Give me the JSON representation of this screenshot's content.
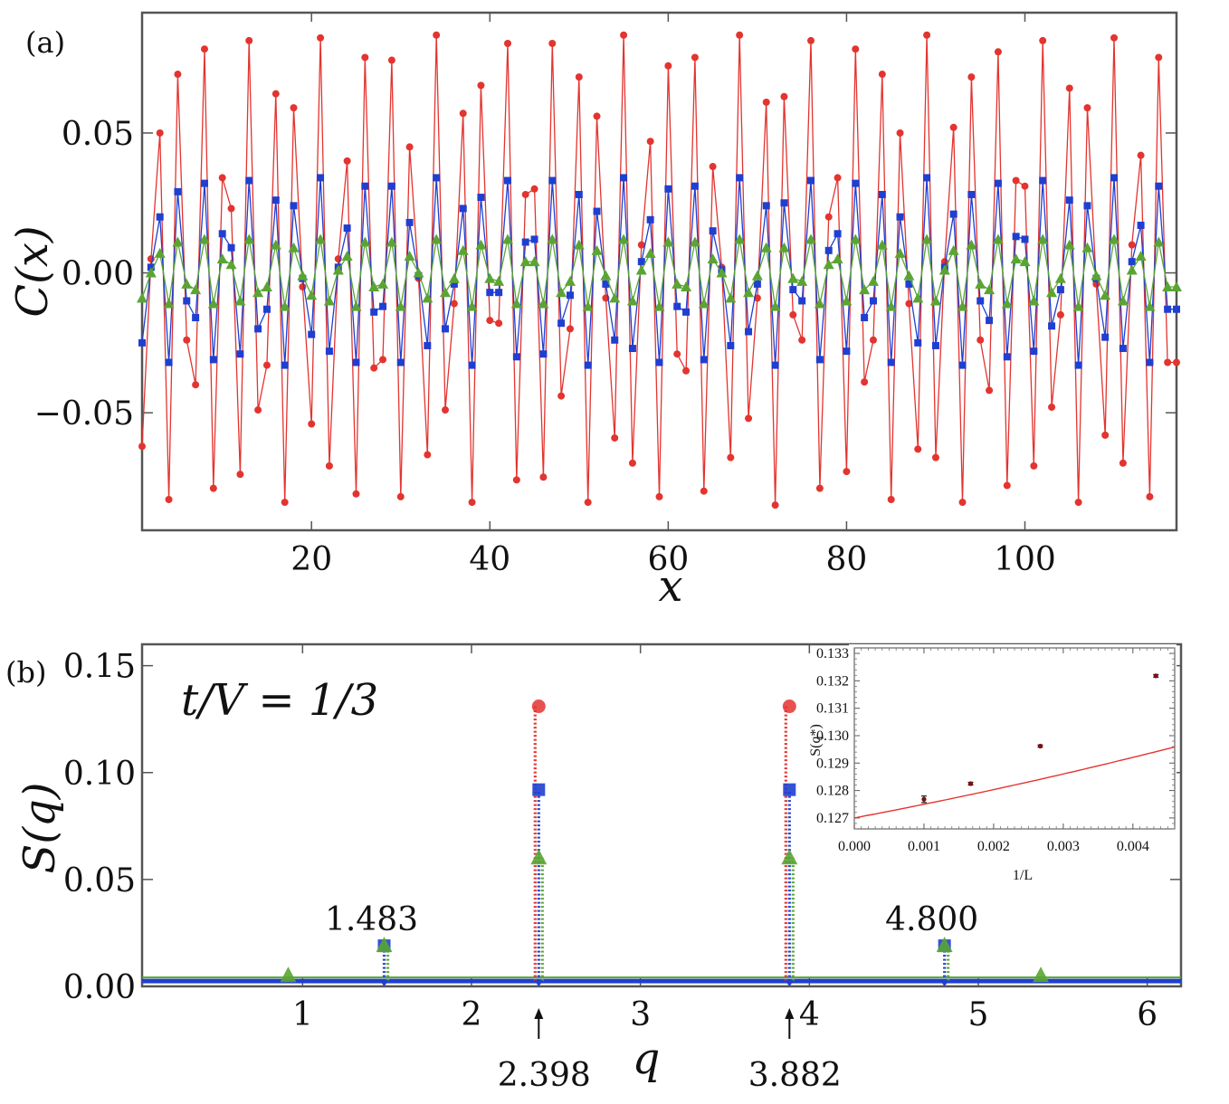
{
  "chart_data": [
    {
      "panel": "(a)",
      "type": "line",
      "xlabel": "x",
      "ylabel": "C(x)",
      "xlim": [
        1,
        117
      ],
      "ylim": [
        -0.092,
        0.093
      ],
      "xticks": [
        20,
        40,
        60,
        80,
        100
      ],
      "xtick_labels": [
        "20",
        "40",
        "60",
        "80",
        "100"
      ],
      "yticks": [
        -0.05,
        0.0,
        0.05
      ],
      "ytick_labels": [
        "−0.05",
        "0.00",
        "0.05"
      ],
      "x": [
        1,
        2,
        3,
        4,
        5,
        6,
        7,
        8,
        9,
        10,
        11,
        12,
        13,
        14,
        15,
        16,
        17,
        18,
        19,
        20,
        21,
        22,
        23,
        24,
        25,
        26,
        27,
        28,
        29,
        30,
        31,
        32,
        33,
        34,
        35,
        36,
        37,
        38,
        39,
        40,
        41,
        42,
        43,
        44,
        45,
        46,
        47,
        48,
        49,
        50,
        51,
        52,
        53,
        54,
        55,
        56,
        57,
        58,
        59,
        60,
        61,
        62,
        63,
        64,
        65,
        66,
        67,
        68,
        69,
        70,
        71,
        72,
        73,
        74,
        75,
        76,
        77,
        78,
        79,
        80,
        81,
        82,
        83,
        84,
        85,
        86,
        87,
        88,
        89,
        90,
        91,
        92,
        93,
        94,
        95,
        96,
        97,
        98,
        99,
        100,
        101,
        102,
        103,
        104,
        105,
        106,
        107,
        108,
        109,
        110,
        111,
        112,
        113,
        114,
        115,
        116,
        117
      ],
      "series": [
        {
          "name": "red circles",
          "color": "#e3342f",
          "marker": "circle",
          "values": [
            -0.062,
            0.005,
            0.05,
            -0.081,
            0.071,
            -0.024,
            -0.04,
            0.08,
            -0.077,
            0.034,
            0.023,
            -0.072,
            0.083,
            -0.049,
            -0.033,
            0.064,
            -0.082,
            0.059,
            -0.005,
            -0.054,
            0.084,
            -0.069,
            0.005,
            0.04,
            -0.079,
            0.077,
            -0.034,
            -0.031,
            0.076,
            -0.08,
            0.045,
            -0.002,
            -0.065,
            0.085,
            -0.049,
            -0.011,
            0.057,
            -0.082,
            0.067,
            -0.017,
            -0.018,
            0.082,
            -0.074,
            0.028,
            0.03,
            -0.073,
            0.082,
            -0.044,
            -0.02,
            0.07,
            -0.082,
            0.056,
            -0.009,
            -0.059,
            0.085,
            -0.068,
            0.01,
            0.047,
            -0.08,
            0.074,
            -0.029,
            -0.035,
            0.077,
            -0.078,
            0.038,
            0.002,
            -0.066,
            0.085,
            -0.052,
            -0.009,
            0.061,
            -0.083,
            0.063,
            -0.015,
            -0.024,
            0.083,
            -0.077,
            0.02,
            0.034,
            -0.071,
            0.08,
            -0.039,
            -0.024,
            0.071,
            -0.081,
            0.05,
            -0.011,
            -0.063,
            0.085,
            -0.066,
            0.004,
            0.052,
            -0.082,
            0.07,
            -0.024,
            -0.042,
            0.079,
            -0.076,
            0.033,
            0.031,
            -0.069,
            0.083,
            -0.048,
            -0.015,
            0.066,
            -0.082,
            0.059,
            -0.004,
            -0.058,
            0.084,
            -0.068,
            0.01,
            0.042,
            -0.08,
            0.077,
            -0.032,
            -0.032
          ]
        },
        {
          "name": "blue squares",
          "color": "#1f3fd1",
          "marker": "square",
          "values": [
            -0.025,
            0.002,
            0.02,
            -0.032,
            0.029,
            -0.01,
            -0.016,
            0.032,
            -0.031,
            0.014,
            0.009,
            -0.029,
            0.033,
            -0.02,
            -0.013,
            0.026,
            -0.033,
            0.024,
            -0.002,
            -0.022,
            0.034,
            -0.028,
            0.002,
            0.016,
            -0.032,
            0.031,
            -0.014,
            -0.012,
            0.031,
            -0.032,
            0.018,
            -0.001,
            -0.026,
            0.034,
            -0.02,
            -0.004,
            0.023,
            -0.033,
            0.027,
            -0.007,
            -0.007,
            0.033,
            -0.03,
            0.011,
            0.012,
            -0.029,
            0.033,
            -0.018,
            -0.008,
            0.028,
            -0.033,
            0.022,
            -0.004,
            -0.024,
            0.034,
            -0.027,
            0.004,
            0.019,
            -0.032,
            0.03,
            -0.012,
            -0.014,
            0.031,
            -0.031,
            0.015,
            0.001,
            -0.026,
            0.034,
            -0.021,
            -0.004,
            0.024,
            -0.033,
            0.025,
            -0.006,
            -0.01,
            0.033,
            -0.031,
            0.008,
            0.014,
            -0.028,
            0.032,
            -0.016,
            -0.01,
            0.028,
            -0.032,
            0.02,
            -0.004,
            -0.025,
            0.034,
            -0.026,
            0.002,
            0.021,
            -0.033,
            0.028,
            -0.01,
            -0.017,
            0.032,
            -0.03,
            0.013,
            0.012,
            -0.028,
            0.033,
            -0.019,
            -0.006,
            0.026,
            -0.033,
            0.024,
            -0.002,
            -0.023,
            0.034,
            -0.027,
            0.004,
            0.017,
            -0.032,
            0.031,
            -0.013,
            -0.013
          ]
        },
        {
          "name": "green triangles",
          "color": "#5aa532",
          "marker": "triangle",
          "values": [
            -0.009,
            0.0,
            0.007,
            -0.011,
            0.011,
            -0.004,
            -0.006,
            0.012,
            -0.011,
            0.005,
            0.003,
            -0.01,
            0.012,
            -0.007,
            -0.005,
            0.01,
            -0.012,
            0.009,
            -0.001,
            -0.008,
            0.012,
            -0.01,
            0.001,
            0.006,
            -0.012,
            0.011,
            -0.005,
            -0.004,
            0.011,
            -0.012,
            0.006,
            0.0,
            -0.009,
            0.012,
            -0.007,
            -0.002,
            0.008,
            -0.012,
            0.01,
            -0.002,
            -0.003,
            0.012,
            -0.011,
            0.004,
            0.004,
            -0.011,
            0.012,
            -0.007,
            -0.003,
            0.01,
            -0.012,
            0.008,
            -0.001,
            -0.009,
            0.012,
            -0.01,
            0.001,
            0.007,
            -0.012,
            0.011,
            -0.004,
            -0.005,
            0.011,
            -0.011,
            0.005,
            0.0,
            -0.009,
            0.012,
            -0.007,
            -0.001,
            0.009,
            -0.012,
            0.009,
            -0.002,
            -0.003,
            0.012,
            -0.011,
            0.003,
            0.005,
            -0.01,
            0.012,
            -0.006,
            -0.003,
            0.01,
            -0.012,
            0.007,
            -0.001,
            -0.009,
            0.012,
            -0.01,
            0.001,
            0.008,
            -0.012,
            0.01,
            -0.004,
            -0.006,
            0.012,
            -0.011,
            0.005,
            0.004,
            -0.01,
            0.012,
            -0.007,
            -0.002,
            0.01,
            -0.012,
            0.009,
            -0.001,
            -0.008,
            0.012,
            -0.01,
            0.001,
            0.006,
            -0.012,
            0.011,
            -0.005,
            -0.005
          ]
        }
      ]
    },
    {
      "panel": "(b)",
      "type": "line",
      "xlabel": "q",
      "ylabel": "S(q)",
      "xlim": [
        0.05,
        6.2
      ],
      "ylim": [
        0.0,
        0.16
      ],
      "xticks": [
        1,
        2,
        3,
        4,
        5,
        6
      ],
      "xtick_labels": [
        "1",
        "2",
        "3",
        "4",
        "5",
        "6"
      ],
      "yticks": [
        0.0,
        0.05,
        0.1,
        0.15
      ],
      "ytick_labels": [
        "0.00",
        "0.05",
        "0.10",
        "0.15"
      ],
      "annotation_formula": "t/V = 1/3",
      "baseline": 0.0025,
      "peaks": [
        {
          "q": 2.398,
          "red": 0.131,
          "blue": 0.092,
          "green": 0.06
        },
        {
          "q": 3.882,
          "red": 0.131,
          "blue": 0.092,
          "green": 0.06
        },
        {
          "q": 1.483,
          "red": 0.0025,
          "blue": 0.019,
          "green": 0.019
        },
        {
          "q": 4.8,
          "red": 0.0025,
          "blue": 0.019,
          "green": 0.019
        }
      ],
      "minor_green_points": [
        {
          "q": 0.915,
          "value": 0.005
        },
        {
          "q": 5.37,
          "value": 0.005
        }
      ],
      "peak_labels_above": [
        {
          "q": 1.483,
          "text": "1.483"
        },
        {
          "q": 4.8,
          "text": "4.800"
        }
      ],
      "peak_labels_below": [
        {
          "q": 2.398,
          "text": "2.398"
        },
        {
          "q": 3.882,
          "text": "3.882"
        }
      ],
      "series_colors": {
        "red": "#e3342f",
        "blue": "#1f3fd1",
        "green": "#5aa532"
      }
    },
    {
      "panel": "inset",
      "type": "scatter",
      "xlabel": "1/L",
      "ylabel": "S(q*)",
      "xlim": [
        0.0,
        0.0046
      ],
      "ylim": [
        0.1266,
        0.1332
      ],
      "xticks": [
        0.0,
        0.001,
        0.002,
        0.003,
        0.004
      ],
      "xtick_labels": [
        "0.000",
        "0.001",
        "0.002",
        "0.003",
        "0.004"
      ],
      "yticks": [
        0.127,
        0.128,
        0.129,
        0.13,
        0.131,
        0.132,
        0.133
      ],
      "ytick_labels": [
        "0.127",
        "0.128",
        "0.129",
        "0.130",
        "0.131",
        "0.132",
        "0.133"
      ],
      "points": [
        {
          "x": 0.001,
          "y": 0.12768,
          "err": 0.00012
        },
        {
          "x": 0.00167,
          "y": 0.12825,
          "err": 5e-05
        },
        {
          "x": 0.00267,
          "y": 0.12962,
          "err": 4e-05
        },
        {
          "x": 0.00433,
          "y": 0.13218,
          "err": 5e-05
        }
      ],
      "fit": {
        "a": 0.127,
        "b": 0.48,
        "c": 18.0
      },
      "fit_color": "#e3342f"
    }
  ]
}
